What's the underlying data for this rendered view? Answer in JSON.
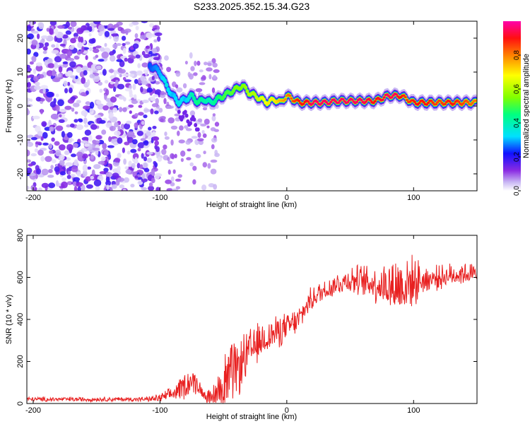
{
  "figure_title": "S233.2025.352.15.34.G23",
  "chart_data": [
    {
      "type": "heatmap",
      "title": "S233.2025.352.15.34.G23",
      "xlabel": "Height of straight line (km)",
      "ylabel": "Frequency (Hz)",
      "xlim": [
        -205,
        150
      ],
      "ylim": [
        -25,
        25
      ],
      "xticks": [
        -200,
        -100,
        0,
        100
      ],
      "yticks": [
        -20,
        -10,
        0,
        10,
        20
      ],
      "colorbar": {
        "label": "Normalized spectral amplitude",
        "range": [
          0,
          1
        ],
        "ticks": [
          0.0,
          0.2,
          0.4,
          0.6,
          0.8
        ]
      },
      "noise_region": {
        "x_range": [
          -205,
          -100
        ],
        "freq_range": [
          -25,
          25
        ],
        "amplitude_range": [
          0.02,
          0.2
        ]
      },
      "ridge": {
        "x": [
          -108,
          -100,
          -95,
          -90,
          -85,
          -80,
          -75,
          -70,
          -65,
          -60,
          -55,
          -50,
          -45,
          -40,
          -35,
          -30,
          -25,
          -20,
          -15,
          -10,
          -5,
          0,
          5,
          10,
          15,
          20,
          30,
          40,
          50,
          60,
          70,
          80,
          85,
          90,
          95,
          100,
          110,
          120,
          130,
          140,
          150
        ],
        "frequency": [
          12,
          10,
          6,
          3,
          1,
          2,
          3,
          1,
          2,
          1,
          2,
          3,
          4,
          5,
          6,
          4,
          3,
          2,
          1,
          2,
          1,
          3,
          2,
          1,
          1,
          1,
          1,
          1.5,
          1.5,
          1.5,
          1.5,
          3,
          3,
          3,
          2,
          1,
          1,
          1,
          1,
          1,
          1
        ],
        "amplitude": [
          0.25,
          0.3,
          0.35,
          0.3,
          0.35,
          0.3,
          0.4,
          0.45,
          0.4,
          0.4,
          0.45,
          0.5,
          0.5,
          0.55,
          0.55,
          0.6,
          0.6,
          0.65,
          0.7,
          0.7,
          0.75,
          0.8,
          0.85,
          0.9,
          0.9,
          0.95,
          0.95,
          0.95,
          0.95,
          0.95,
          0.9,
          0.95,
          0.95,
          0.9,
          0.85,
          0.9,
          0.9,
          0.85,
          0.9,
          0.85,
          0.8
        ]
      }
    },
    {
      "type": "line",
      "xlabel": "Height of straight line (km)",
      "ylabel": "SNR (10 * v/v)",
      "xlim": [
        -205,
        150
      ],
      "ylim": [
        0,
        800
      ],
      "xticks": [
        -200,
        -100,
        0,
        100
      ],
      "yticks": [
        0,
        200,
        400,
        600,
        800
      ],
      "series": [
        {
          "name": "SNR",
          "color": "#e82020",
          "envelope_x": [
            -205,
            -110,
            -100,
            -90,
            -80,
            -75,
            -70,
            -65,
            -60,
            -55,
            -50,
            -45,
            -40,
            -35,
            -30,
            -25,
            -20,
            -15,
            -10,
            -5,
            0,
            5,
            10,
            15,
            20,
            30,
            40,
            50,
            60,
            70,
            80,
            90,
            95,
            100,
            110,
            120,
            130,
            140,
            150
          ],
          "envelope_mean": [
            20,
            20,
            25,
            45,
            90,
            110,
            85,
            40,
            20,
            50,
            100,
            130,
            150,
            200,
            240,
            270,
            300,
            320,
            330,
            350,
            360,
            380,
            400,
            460,
            500,
            540,
            570,
            590,
            580,
            570,
            560,
            560,
            570,
            580,
            590,
            600,
            610,
            620,
            610
          ],
          "envelope_noise": [
            10,
            10,
            20,
            30,
            60,
            60,
            40,
            20,
            40,
            80,
            130,
            150,
            120,
            110,
            100,
            90,
            80,
            70,
            70,
            70,
            60,
            60,
            60,
            50,
            50,
            50,
            50,
            60,
            70,
            80,
            110,
            150,
            130,
            100,
            60,
            50,
            50,
            50,
            50
          ]
        }
      ]
    }
  ]
}
